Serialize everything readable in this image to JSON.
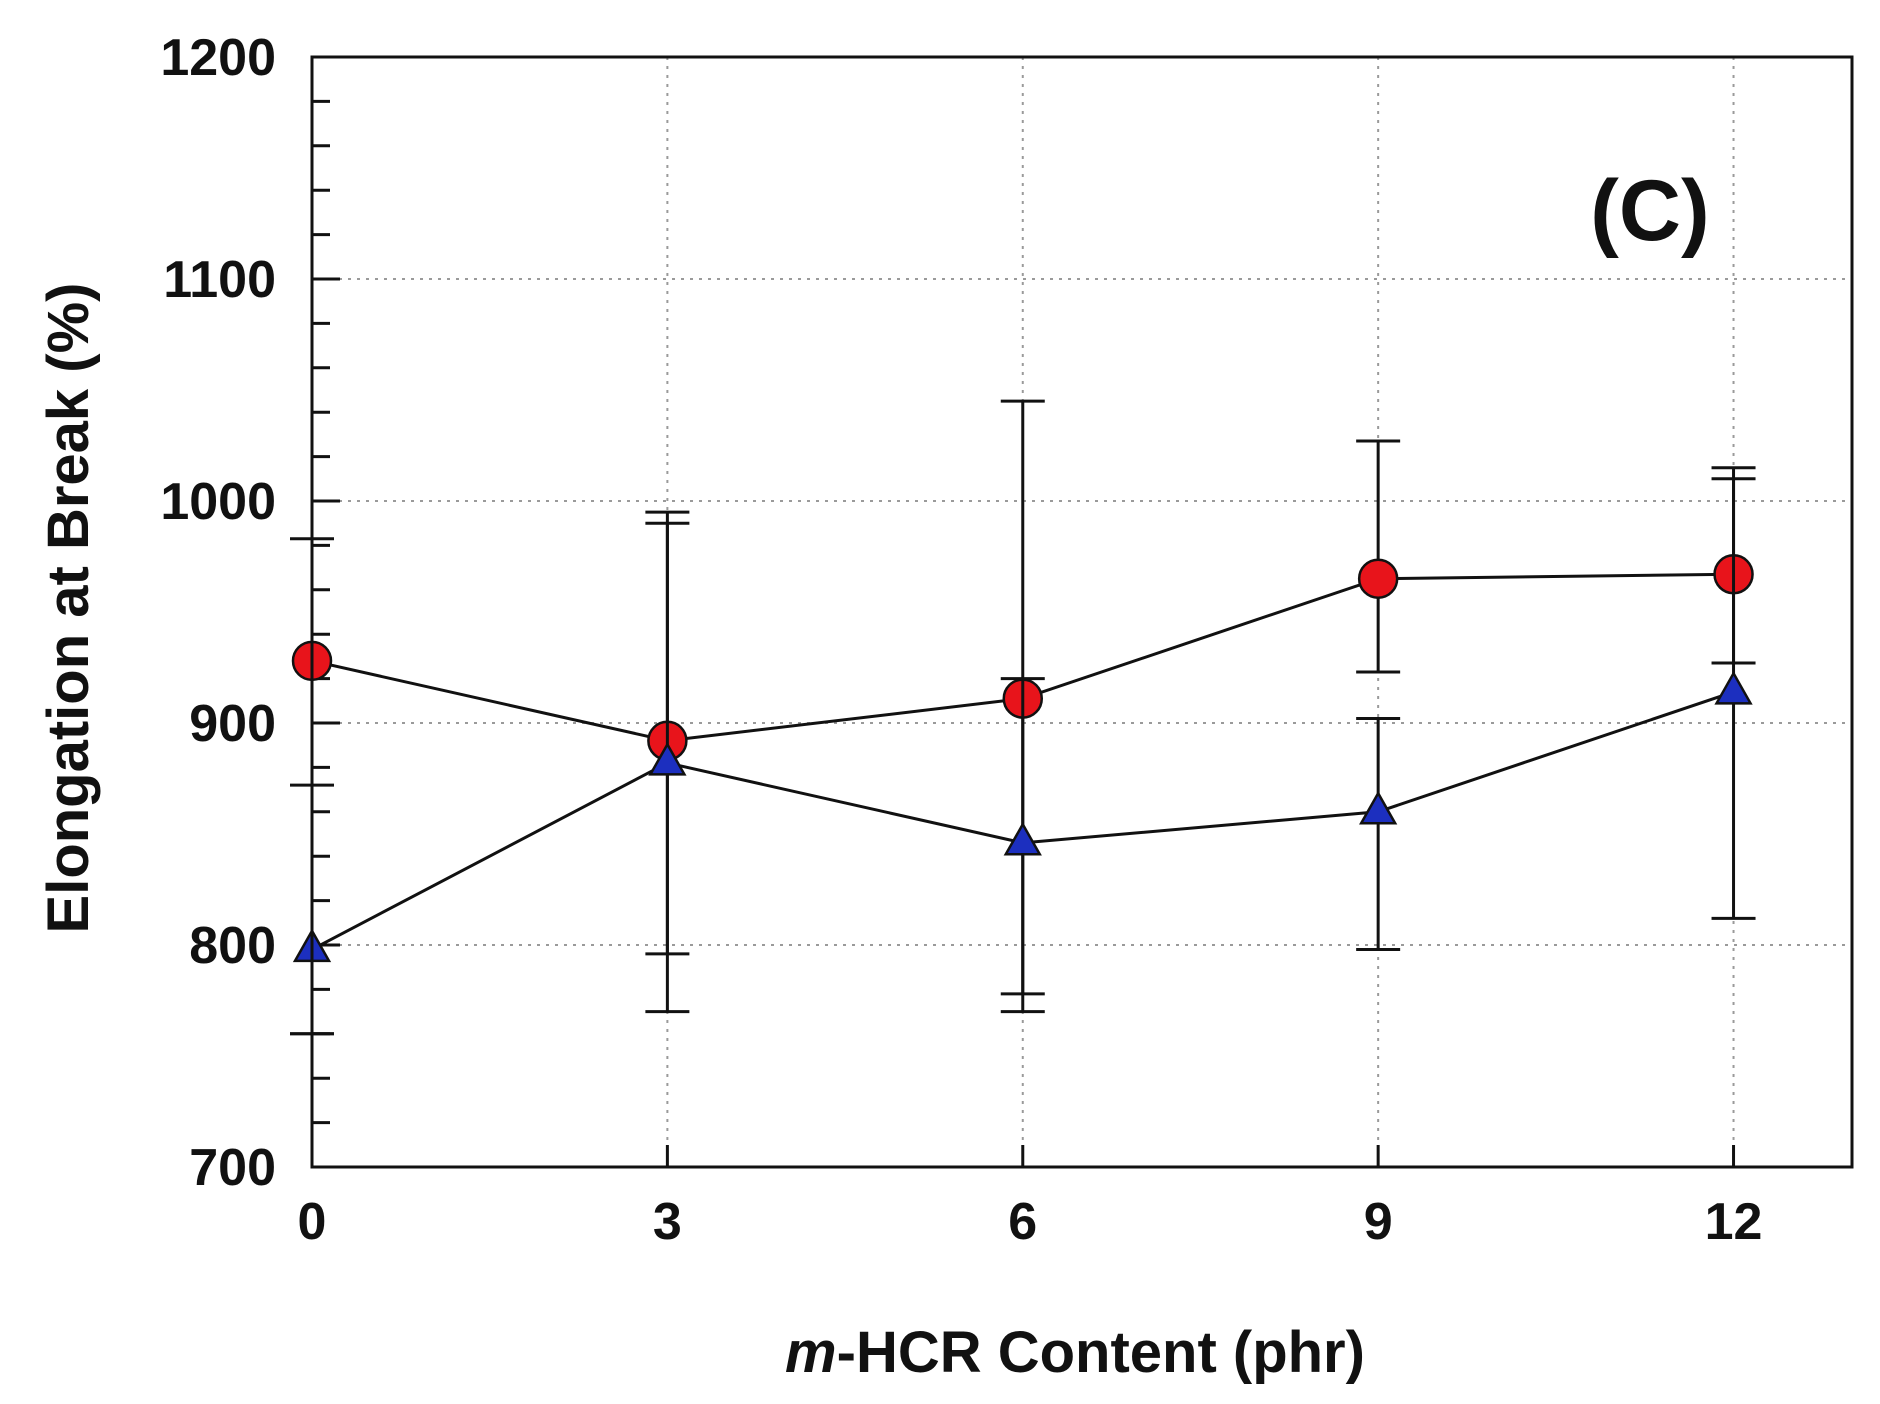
{
  "chart_data": {
    "type": "line",
    "title": "",
    "panel_label": "(C)",
    "xlabel_prefix": "m",
    "xlabel_rest": "-HCR Content (phr)",
    "ylabel": "Elongation at Break (%)",
    "x": [
      0,
      3,
      6,
      9,
      12
    ],
    "x_ticks": [
      "0",
      "3",
      "6",
      "9",
      "12"
    ],
    "y_ticks": [
      "700",
      "800",
      "900",
      "1000",
      "1100",
      "1200"
    ],
    "xlim": [
      0,
      13
    ],
    "ylim": [
      700,
      1200
    ],
    "grid": true,
    "series": [
      {
        "name": "red circles",
        "marker": "circle",
        "color": "#e8141b",
        "values": [
          928,
          892,
          911,
          965,
          967
        ],
        "err_low": [
          760,
          770,
          770,
          923,
          927
        ],
        "err_high": [
          983,
          995,
          1045,
          1027,
          1015
        ]
      },
      {
        "name": "blue triangles",
        "marker": "triangle",
        "color": "#1c2fbf",
        "values": [
          798,
          882,
          846,
          860,
          914
        ],
        "err_low": [
          760,
          796,
          778,
          798,
          812
        ],
        "err_high": [
          872,
          990,
          920,
          902,
          1010
        ]
      }
    ]
  }
}
